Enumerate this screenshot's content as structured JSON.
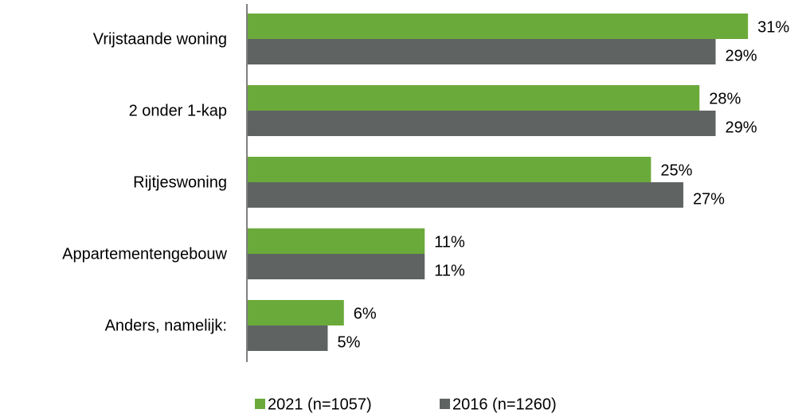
{
  "chart_data": {
    "type": "bar",
    "orientation": "horizontal",
    "categories": [
      "Vrijstaande woning",
      "2 onder 1-kap",
      "Rijtjeswoning",
      "Appartementengebouw",
      "Anders, namelijk:"
    ],
    "series": [
      {
        "name": "2021 (n=1057)",
        "color": "#6aaa3a",
        "values": [
          31,
          28,
          25,
          11,
          6
        ],
        "value_labels": [
          "31%",
          "28%",
          "25%",
          "11%",
          "6%"
        ]
      },
      {
        "name": "2016 (n=1260)",
        "color": "#5f6462",
        "values": [
          29,
          29,
          27,
          11,
          5
        ],
        "value_labels": [
          "29%",
          "29%",
          "27%",
          "11%",
          "5%"
        ]
      }
    ],
    "xlim": [
      0,
      34
    ],
    "legend": "bottom"
  }
}
